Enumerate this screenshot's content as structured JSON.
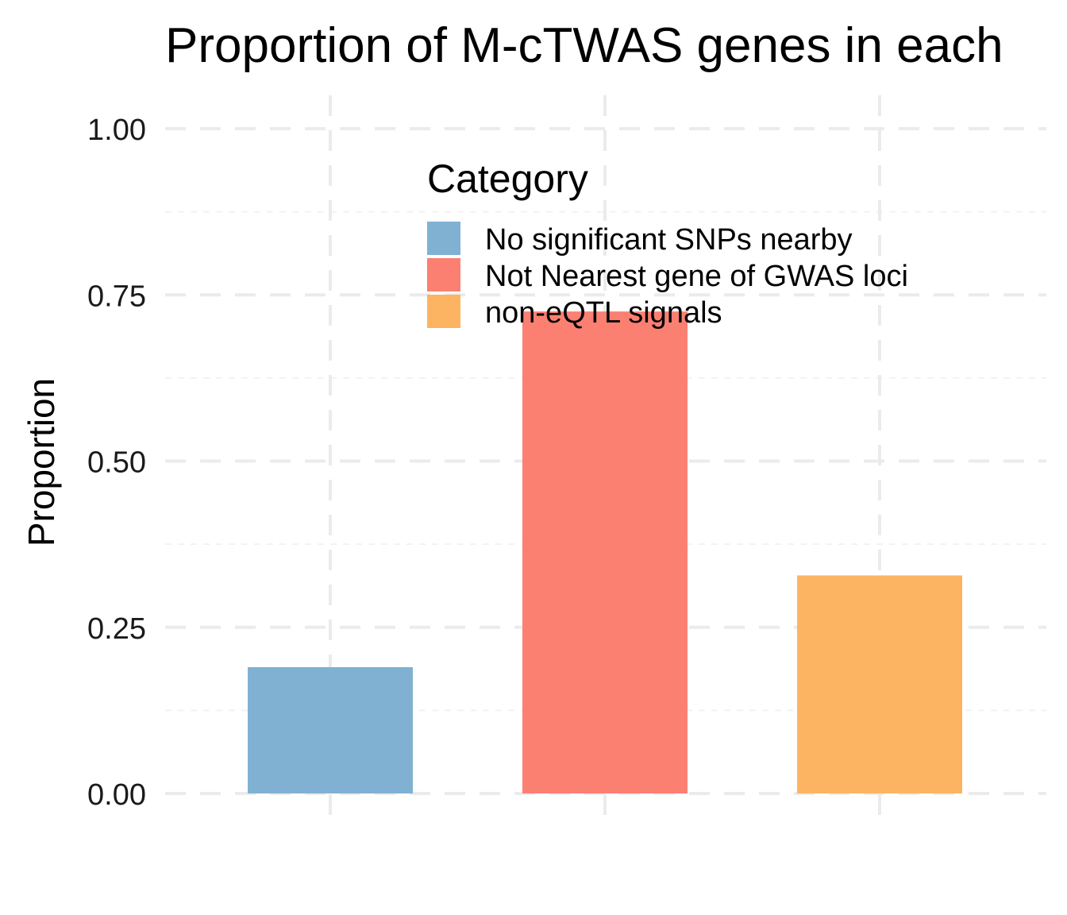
{
  "chart_data": {
    "type": "bar",
    "title": "Proportion of M-cTWAS genes in each",
    "xlabel": "",
    "ylabel": "Proportion",
    "categories": [
      "No significant SNPs nearby",
      "Not Nearest gene of GWAS loci",
      "non-eQTL signals"
    ],
    "values": [
      0.19,
      0.725,
      0.328
    ],
    "colors": [
      "#80b1d3",
      "#fb8072",
      "#fdb462"
    ],
    "ylim": [
      0,
      1.0
    ],
    "yticks": [
      0.0,
      0.25,
      0.5,
      0.75,
      1.0
    ],
    "ytick_labels": [
      "0.00",
      "0.25",
      "0.50",
      "0.75",
      "1.00"
    ],
    "grid": true,
    "legend": {
      "title": "Category",
      "placement": "top-center",
      "entries": [
        "No significant SNPs nearby",
        "Not Nearest gene of GWAS loci",
        "non-eQTL signals"
      ]
    }
  }
}
